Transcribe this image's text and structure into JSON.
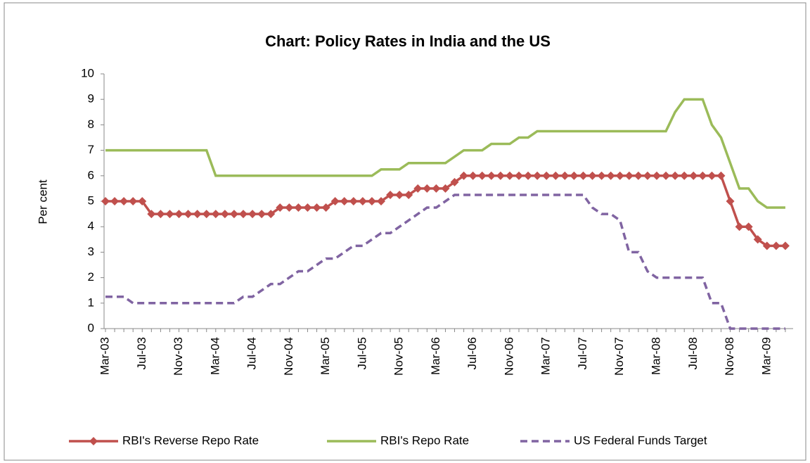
{
  "chart_data": {
    "type": "line",
    "title": "Chart: Policy Rates in India and the US",
    "y_label": "Per cent",
    "categories": [
      "Mar-03",
      null,
      null,
      null,
      "Jul-03",
      null,
      null,
      null,
      "Nov-03",
      null,
      null,
      null,
      "Mar-04",
      null,
      null,
      null,
      "Jul-04",
      null,
      null,
      null,
      "Nov-04",
      null,
      null,
      null,
      "Mar-05",
      null,
      null,
      null,
      "Jul-05",
      null,
      null,
      null,
      "Nov-05",
      null,
      null,
      null,
      "Mar-06",
      null,
      null,
      null,
      "Jul-06",
      null,
      null,
      null,
      "Nov-06",
      null,
      null,
      null,
      "Mar-07",
      null,
      null,
      null,
      "Jul-07",
      null,
      null,
      null,
      "Nov-07",
      null,
      null,
      null,
      "Mar-08",
      null,
      null,
      null,
      "Jul-08",
      null,
      null,
      null,
      "Nov-08",
      null,
      null,
      null,
      "Mar-09",
      null,
      null
    ],
    "series": [
      {
        "name": "RBI's Reverse Repo Rate",
        "color": "#c0504d",
        "marker": "diamond",
        "dash": "solid",
        "values": [
          5,
          5,
          5,
          5,
          5,
          4.5,
          4.5,
          4.5,
          4.5,
          4.5,
          4.5,
          4.5,
          4.5,
          4.5,
          4.5,
          4.5,
          4.5,
          4.5,
          4.5,
          4.75,
          4.75,
          4.75,
          4.75,
          4.75,
          4.75,
          5,
          5,
          5,
          5,
          5,
          5,
          5.25,
          5.25,
          5.25,
          5.5,
          5.5,
          5.5,
          5.5,
          5.75,
          6,
          6,
          6,
          6,
          6,
          6,
          6,
          6,
          6,
          6,
          6,
          6,
          6,
          6,
          6,
          6,
          6,
          6,
          6,
          6,
          6,
          6,
          6,
          6,
          6,
          6,
          6,
          6,
          6,
          5,
          4,
          4,
          3.5,
          3.25,
          3.25,
          3.25
        ]
      },
      {
        "name": "RBI's Repo Rate",
        "color": "#9bbb59",
        "marker": "none",
        "dash": "solid",
        "values": [
          7,
          7,
          7,
          7,
          7,
          7,
          7,
          7,
          7,
          7,
          7,
          7,
          6,
          6,
          6,
          6,
          6,
          6,
          6,
          6,
          6,
          6,
          6,
          6,
          6,
          6,
          6,
          6,
          6,
          6,
          6.25,
          6.25,
          6.25,
          6.5,
          6.5,
          6.5,
          6.5,
          6.5,
          6.75,
          7,
          7,
          7,
          7.25,
          7.25,
          7.25,
          7.5,
          7.5,
          7.75,
          7.75,
          7.75,
          7.75,
          7.75,
          7.75,
          7.75,
          7.75,
          7.75,
          7.75,
          7.75,
          7.75,
          7.75,
          7.75,
          7.75,
          8.5,
          9,
          9,
          9,
          8,
          7.5,
          6.5,
          5.5,
          5.5,
          5,
          4.75,
          4.75,
          4.75
        ]
      },
      {
        "name": "US Federal Funds Target",
        "color": "#8064a2",
        "marker": "none",
        "dash": "dashed",
        "values": [
          1.25,
          1.25,
          1.25,
          1,
          1,
          1,
          1,
          1,
          1,
          1,
          1,
          1,
          1,
          1,
          1,
          1.25,
          1.25,
          1.5,
          1.75,
          1.75,
          2,
          2.25,
          2.25,
          2.5,
          2.75,
          2.75,
          3,
          3.25,
          3.25,
          3.5,
          3.75,
          3.75,
          4,
          4.25,
          4.5,
          4.75,
          4.75,
          5,
          5.25,
          5.25,
          5.25,
          5.25,
          5.25,
          5.25,
          5.25,
          5.25,
          5.25,
          5.25,
          5.25,
          5.25,
          5.25,
          5.25,
          5.25,
          4.75,
          4.5,
          4.5,
          4.25,
          3,
          3,
          2.25,
          2,
          2,
          2,
          2,
          2,
          2,
          1,
          1,
          0,
          0,
          0,
          0,
          0,
          0,
          0
        ]
      }
    ],
    "ylim": [
      0,
      10
    ],
    "yticks": [
      0,
      1,
      2,
      3,
      4,
      5,
      6,
      7,
      8,
      9,
      10
    ],
    "grid": false,
    "legend": "bottom"
  }
}
